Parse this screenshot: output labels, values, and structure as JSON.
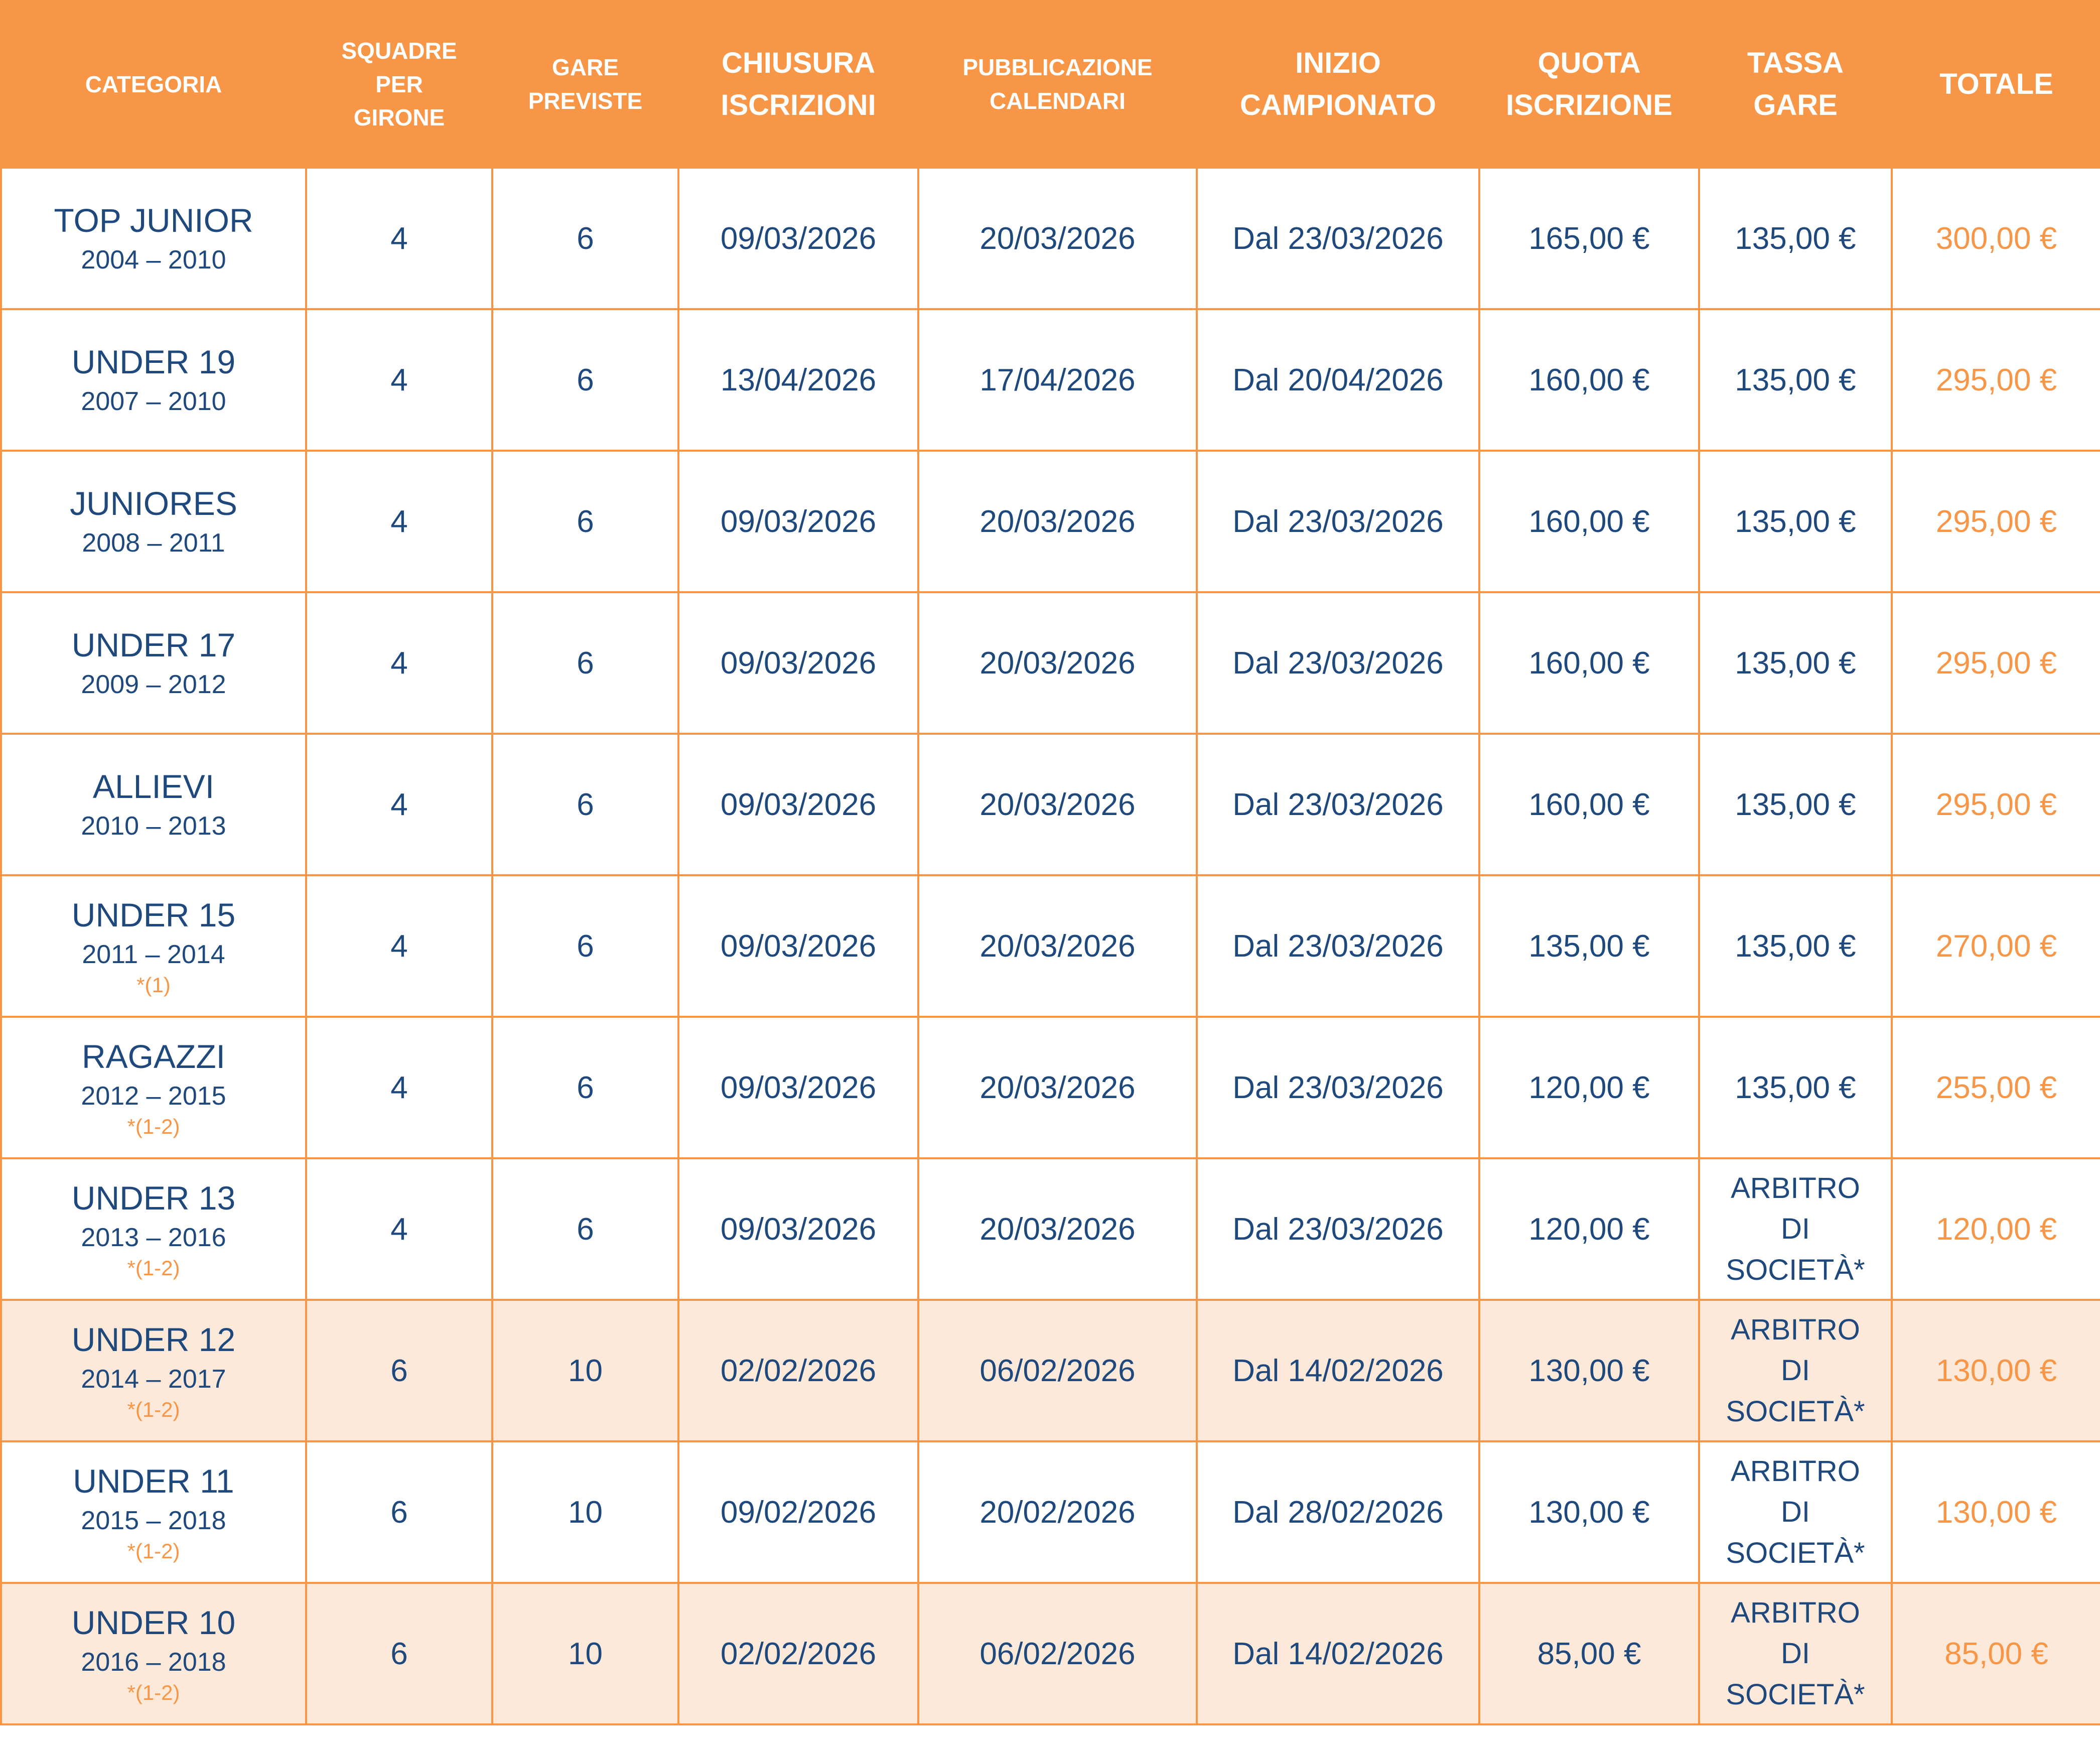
{
  "colors": {
    "header_bg": "#F79646",
    "text": "#1F497D",
    "total_text": "#F79646",
    "highlight_row_bg": "#FDE9D9",
    "border": "#F79646"
  },
  "headers": [
    {
      "label": "CATEGORIA",
      "size": "sm"
    },
    {
      "label": "SQUADRE\nPER\nGIRONE",
      "size": "sm"
    },
    {
      "label": "GARE\nPREVISTE",
      "size": "sm"
    },
    {
      "label": "CHIUSURA\nISCRIZIONI",
      "size": "lg"
    },
    {
      "label": "PUBBLICAZIONE\nCALENDARI",
      "size": "sm"
    },
    {
      "label": "INIZIO\nCAMPIONATO",
      "size": "lg"
    },
    {
      "label": "QUOTA\nISCRIZIONE",
      "size": "lg"
    },
    {
      "label": "TASSA\nGARE",
      "size": "lg"
    },
    {
      "label": "TOTALE",
      "size": "lg"
    }
  ],
  "rows": [
    {
      "categoria": "TOP JUNIOR",
      "anni": "2004 – 2010",
      "nota": "",
      "squadre": "4",
      "gare": "6",
      "chiusura": "09/03/2026",
      "pubblicazione": "20/03/2026",
      "inizio": "Dal 23/03/2026",
      "quota": "165,00 €",
      "tassa": "135,00 €",
      "totale": "300,00 €",
      "highlight": false
    },
    {
      "categoria": "UNDER 19",
      "anni": "2007 – 2010",
      "nota": "",
      "squadre": "4",
      "gare": "6",
      "chiusura": "13/04/2026",
      "pubblicazione": "17/04/2026",
      "inizio": "Dal 20/04/2026",
      "quota": "160,00 €",
      "tassa": "135,00 €",
      "totale": "295,00 €",
      "highlight": false
    },
    {
      "categoria": "JUNIORES",
      "anni": "2008 – 2011",
      "nota": "",
      "squadre": "4",
      "gare": "6",
      "chiusura": "09/03/2026",
      "pubblicazione": "20/03/2026",
      "inizio": "Dal 23/03/2026",
      "quota": "160,00 €",
      "tassa": "135,00 €",
      "totale": "295,00 €",
      "highlight": false
    },
    {
      "categoria": "UNDER 17",
      "anni": "2009 – 2012",
      "nota": "",
      "squadre": "4",
      "gare": "6",
      "chiusura": "09/03/2026",
      "pubblicazione": "20/03/2026",
      "inizio": "Dal 23/03/2026",
      "quota": "160,00 €",
      "tassa": "135,00 €",
      "totale": "295,00 €",
      "highlight": false
    },
    {
      "categoria": "ALLIEVI",
      "anni": "2010 – 2013",
      "nota": "",
      "squadre": "4",
      "gare": "6",
      "chiusura": "09/03/2026",
      "pubblicazione": "20/03/2026",
      "inizio": "Dal 23/03/2026",
      "quota": "160,00 €",
      "tassa": "135,00 €",
      "totale": "295,00 €",
      "highlight": false
    },
    {
      "categoria": "UNDER 15",
      "anni": "2011 – 2014",
      "nota": "*(1)",
      "squadre": "4",
      "gare": "6",
      "chiusura": "09/03/2026",
      "pubblicazione": "20/03/2026",
      "inizio": "Dal 23/03/2026",
      "quota": "135,00 €",
      "tassa": "135,00 €",
      "totale": "270,00 €",
      "highlight": false
    },
    {
      "categoria": "RAGAZZI",
      "anni": "2012 – 2015",
      "nota": "*(1-2)",
      "squadre": "4",
      "gare": "6",
      "chiusura": "09/03/2026",
      "pubblicazione": "20/03/2026",
      "inizio": "Dal 23/03/2026",
      "quota": "120,00 €",
      "tassa": "135,00 €",
      "totale": "255,00 €",
      "highlight": false
    },
    {
      "categoria": "UNDER 13",
      "anni": "2013 – 2016",
      "nota": "*(1-2)",
      "squadre": "4",
      "gare": "6",
      "chiusura": "09/03/2026",
      "pubblicazione": "20/03/2026",
      "inizio": "Dal 23/03/2026",
      "quota": "120,00 €",
      "tassa": "ARBITRO\nDI\nSOCIETÀ*",
      "totale": "120,00 €",
      "highlight": false
    },
    {
      "categoria": "UNDER 12",
      "anni": "2014 – 2017",
      "nota": "*(1-2)",
      "squadre": "6",
      "gare": "10",
      "chiusura": "02/02/2026",
      "pubblicazione": "06/02/2026",
      "inizio": "Dal 14/02/2026",
      "quota": "130,00 €",
      "tassa": "ARBITRO\nDI\nSOCIETÀ*",
      "totale": "130,00 €",
      "highlight": true
    },
    {
      "categoria": "UNDER 11",
      "anni": "2015 – 2018",
      "nota": "*(1-2)",
      "squadre": "6",
      "gare": "10",
      "chiusura": "09/02/2026",
      "pubblicazione": "20/02/2026",
      "inizio": "Dal 28/02/2026",
      "quota": "130,00 €",
      "tassa": "ARBITRO\nDI\nSOCIETÀ*",
      "totale": "130,00 €",
      "highlight": false
    },
    {
      "categoria": "UNDER 10",
      "anni": "2016 – 2018",
      "nota": "*(1-2)",
      "squadre": "6",
      "gare": "10",
      "chiusura": "02/02/2026",
      "pubblicazione": "06/02/2026",
      "inizio": "Dal 14/02/2026",
      "quota": "85,00 €",
      "tassa": "ARBITRO\nDI\nSOCIETÀ*",
      "totale": "85,00 €",
      "highlight": true
    }
  ]
}
